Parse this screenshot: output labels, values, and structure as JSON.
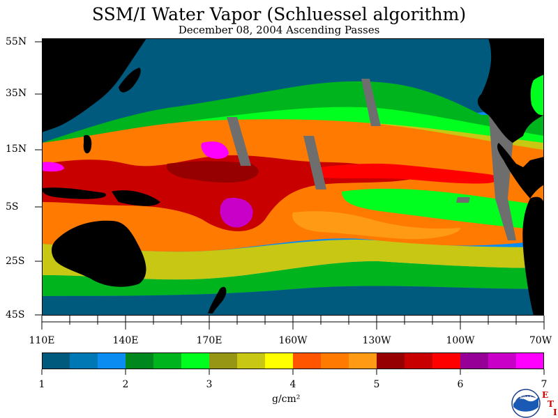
{
  "title": "SSM/I Water Vapor (Schluessel algorithm)",
  "subtitle": "December 08, 2004  Ascending Passes",
  "y_labels": [
    "55N",
    "35N",
    "15N",
    "5S",
    "25S",
    "45S"
  ],
  "x_labels": [
    "110E",
    "140E",
    "170E",
    "160W",
    "130W",
    "100W",
    "70W"
  ],
  "colorbar": {
    "labels": [
      "1",
      "2",
      "3",
      "4",
      "5",
      "6",
      "7"
    ],
    "unit": "g/cm²",
    "colors": [
      "#005a7e",
      "#0078b4",
      "#0a8cf0",
      "#00881e",
      "#00b41e",
      "#00ff1e",
      "#969614",
      "#c8c814",
      "#ffff00",
      "#ff5500",
      "#ff7a00",
      "#ff9a14",
      "#960000",
      "#c80000",
      "#ff0000",
      "#960096",
      "#c800c8",
      "#ff00ff"
    ]
  },
  "logo": {
    "text": "NOAA",
    "letters": [
      "E",
      "T",
      "I"
    ]
  }
}
